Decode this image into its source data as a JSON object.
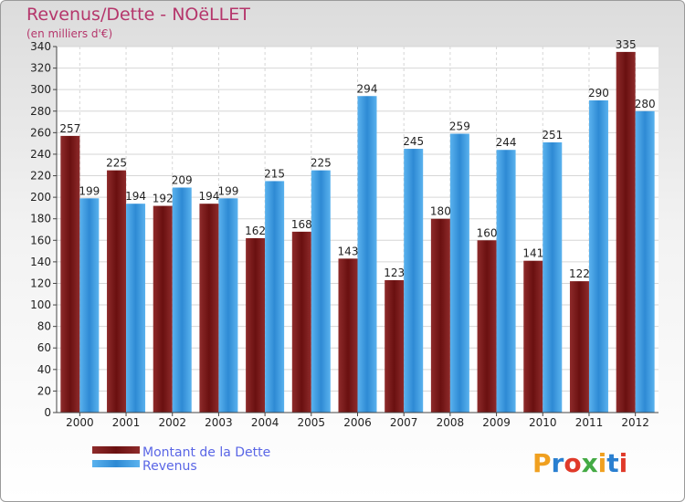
{
  "chart_data": {
    "type": "bar",
    "title": "Revenus/Dette - NOëLLET",
    "subtitle": "(en milliers d'€)",
    "categories": [
      "2000",
      "2001",
      "2002",
      "2003",
      "2004",
      "2005",
      "2006",
      "2007",
      "2008",
      "2009",
      "2010",
      "2011",
      "2012"
    ],
    "series": [
      {
        "name": "Montant de la Dette",
        "color": "#7a1e1e",
        "values": [
          257,
          225,
          192,
          194,
          162,
          168,
          143,
          123,
          180,
          160,
          141,
          122,
          335
        ]
      },
      {
        "name": "Revenus",
        "color": "#3a9be0",
        "values": [
          199,
          194,
          209,
          199,
          215,
          225,
          294,
          245,
          259,
          244,
          251,
          290,
          280
        ]
      }
    ],
    "ylim": [
      0,
      340
    ],
    "ytick_step": 20,
    "grid": true,
    "legend": "bottom-left"
  },
  "logo": {
    "text": "Proxiti",
    "colors": [
      "#f0a020",
      "#2a7fd0",
      "#e03a2a",
      "#44aa44",
      "#f0a020",
      "#2a7fd0",
      "#e03a2a"
    ]
  }
}
